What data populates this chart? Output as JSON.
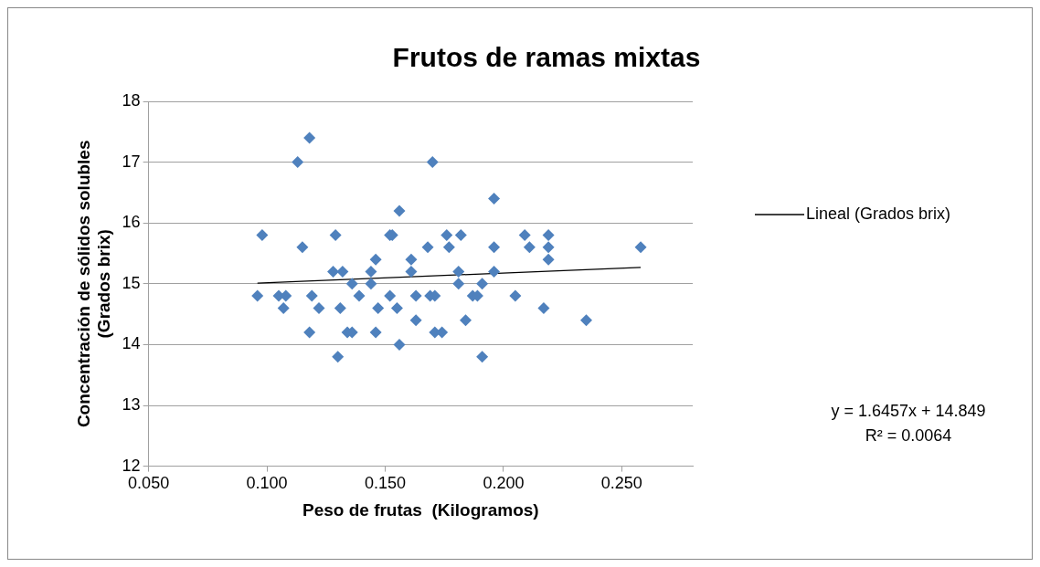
{
  "chart_data": {
    "type": "scatter",
    "title": "Frutos de ramas mixtas",
    "xlabel": "Peso de frutas  (Kilogramos)",
    "ylabel": "Concentración de sólidos solubles\n(Grados brix)",
    "xlim": [
      0.05,
      0.28
    ],
    "xticks": [
      {
        "value": 0.05,
        "label": "0.050"
      },
      {
        "value": 0.1,
        "label": "0.100"
      },
      {
        "value": 0.15,
        "label": "0.150"
      },
      {
        "value": 0.2,
        "label": "0.200"
      },
      {
        "value": 0.25,
        "label": "0.250"
      }
    ],
    "ylim": [
      12,
      18
    ],
    "yticks": [
      12,
      13,
      14,
      15,
      16,
      17,
      18
    ],
    "grid": "y",
    "legend": "right",
    "marker": "diamond",
    "series": [
      {
        "color": "#4f81bd",
        "x": [
          0.118,
          0.113,
          0.17,
          0.156,
          0.098,
          0.129,
          0.152,
          0.153,
          0.176,
          0.182,
          0.115,
          0.168,
          0.177,
          0.146,
          0.161,
          0.128,
          0.132,
          0.144,
          0.161,
          0.181,
          0.136,
          0.144,
          0.181,
          0.096,
          0.105,
          0.108,
          0.119,
          0.139,
          0.152,
          0.163,
          0.169,
          0.171,
          0.107,
          0.122,
          0.131,
          0.147,
          0.155,
          0.163,
          0.118,
          0.134,
          0.136,
          0.146,
          0.171,
          0.174,
          0.156,
          0.13,
          0.184,
          0.196,
          0.209,
          0.219,
          0.196,
          0.211,
          0.219,
          0.219,
          0.258,
          0.196,
          0.191,
          0.187,
          0.189,
          0.205,
          0.217,
          0.235,
          0.191
        ],
        "values": [
          17.4,
          17.0,
          17.0,
          16.2,
          15.8,
          15.8,
          15.8,
          15.8,
          15.8,
          15.8,
          15.6,
          15.6,
          15.6,
          15.4,
          15.4,
          15.2,
          15.2,
          15.2,
          15.2,
          15.2,
          15.0,
          15.0,
          15.0,
          14.8,
          14.8,
          14.8,
          14.8,
          14.8,
          14.8,
          14.8,
          14.8,
          14.8,
          14.6,
          14.6,
          14.6,
          14.6,
          14.6,
          14.4,
          14.2,
          14.2,
          14.2,
          14.2,
          14.2,
          14.2,
          14.0,
          13.8,
          14.4,
          16.4,
          15.8,
          15.8,
          15.6,
          15.6,
          15.6,
          15.4,
          15.6,
          15.2,
          15.0,
          14.8,
          14.8,
          14.8,
          14.6,
          14.4,
          13.8
        ]
      },
      {
        "type": "line",
        "name": "Lineal (Grados brix)",
        "color": "#000000",
        "marker": "none",
        "x": [
          0.096,
          0.258
        ],
        "values": [
          15.01,
          15.27
        ]
      }
    ],
    "annotations": [
      "y = 1.6457x + 14.849",
      "R² = 0.0064"
    ]
  }
}
